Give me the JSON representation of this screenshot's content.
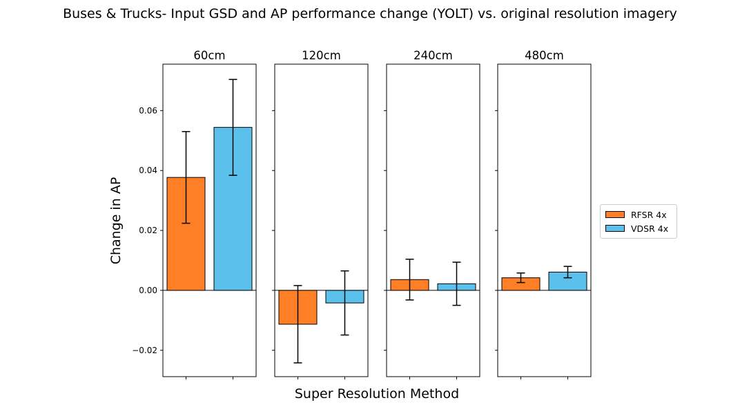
{
  "chart_data": {
    "type": "bar",
    "title": "Buses & Trucks- Input GSD and AP performance change (YOLT) vs. original resolution imagery",
    "xlabel": "Super Resolution Method",
    "ylabel": "Change in AP",
    "ylim": [
      -0.0288,
      0.0755
    ],
    "yticks": [
      -0.02,
      0.0,
      0.02,
      0.04,
      0.06
    ],
    "ytick_labels": [
      "−0.02",
      "0.00",
      "0.02",
      "0.04",
      "0.06"
    ],
    "legend_position": "right",
    "series": [
      {
        "name": "RFSR 4x",
        "color": "#FF7F27"
      },
      {
        "name": "VDSR 4x",
        "color": "#5BC0EB"
      }
    ],
    "panels": [
      {
        "title": "60cm",
        "values": [
          0.0377,
          0.0544
        ],
        "errors": [
          0.0153,
          0.016
        ]
      },
      {
        "title": "120cm",
        "values": [
          -0.0113,
          -0.0042
        ],
        "errors": [
          0.0129,
          0.0107
        ]
      },
      {
        "title": "240cm",
        "values": [
          0.0036,
          0.0022
        ],
        "errors": [
          0.0068,
          0.0072
        ]
      },
      {
        "title": "480cm",
        "values": [
          0.0042,
          0.0061
        ],
        "errors": [
          0.0016,
          0.0019
        ]
      }
    ]
  }
}
